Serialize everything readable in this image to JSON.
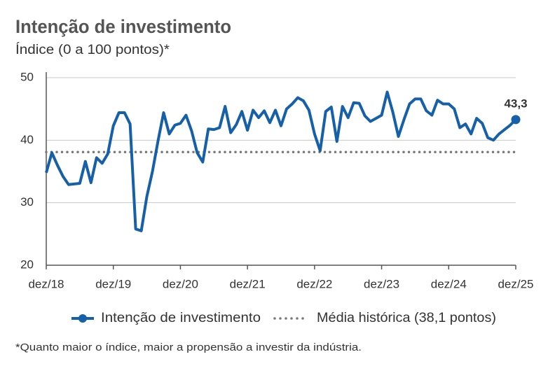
{
  "chart_data": {
    "type": "line",
    "title": "Intenção de investimento",
    "subtitle": "Índice (0 a 100 pontos)*",
    "footnote": "*Quanto maior o índice, maior a propensão a investir da indústria.",
    "categories": [
      "dez/18",
      null,
      null,
      null,
      null,
      null,
      null,
      null,
      null,
      null,
      null,
      null,
      "dez/19",
      null,
      null,
      null,
      null,
      null,
      null,
      null,
      null,
      null,
      null,
      null,
      "dez/20",
      null,
      null,
      null,
      null,
      null,
      null,
      null,
      null,
      null,
      null,
      null,
      "dez/21",
      null,
      null,
      null,
      null,
      null,
      null,
      null,
      null,
      null,
      null,
      null,
      "dez/22",
      null,
      null,
      null,
      null,
      null,
      null,
      null,
      null,
      null,
      null,
      null,
      "dez/23",
      null,
      null,
      null,
      null,
      null,
      null,
      null,
      null,
      null,
      null,
      null,
      "dez/24",
      null,
      null,
      null,
      null,
      null,
      null,
      null,
      null,
      null,
      null,
      null,
      "dez/25"
    ],
    "series": [
      {
        "name": "Intenção de investimento",
        "color": "#1560a8",
        "values": [
          34.8,
          38.0,
          36.0,
          34.2,
          32.9,
          33.0,
          33.1,
          36.6,
          33.2,
          37.2,
          36.3,
          37.8,
          42.3,
          44.4,
          44.4,
          42.6,
          25.8,
          25.5,
          31.0,
          35.0,
          39.9,
          44.4,
          41.0,
          42.4,
          42.7,
          44.0,
          41.5,
          38.0,
          36.5,
          41.8,
          41.7,
          42.0,
          45.4,
          41.2,
          42.5,
          44.6,
          41.6,
          44.8,
          43.6,
          44.7,
          42.8,
          44.8,
          42.3,
          45.0,
          45.8,
          46.8,
          46.3,
          44.8,
          41.0,
          38.3,
          44.6,
          45.3,
          39.8,
          45.4,
          43.6,
          46.0,
          45.9,
          43.9,
          43.0,
          43.5,
          44.0,
          47.7,
          44.5,
          40.6,
          43.3,
          45.8,
          46.6,
          46.6,
          44.7,
          44.0,
          46.4,
          45.8,
          45.8,
          45.0,
          42.0,
          42.6,
          41.0,
          43.5,
          42.7,
          40.4,
          40.0,
          41.0,
          41.7,
          42.4,
          43.3
        ],
        "value_labels": [
          null,
          null,
          null,
          null,
          null,
          null,
          null,
          null,
          null,
          null,
          null,
          null,
          null,
          null,
          null,
          null,
          null,
          null,
          null,
          null,
          null,
          null,
          null,
          null,
          null,
          null,
          null,
          null,
          null,
          null,
          null,
          null,
          null,
          null,
          null,
          null,
          null,
          null,
          null,
          null,
          null,
          null,
          null,
          null,
          null,
          null,
          null,
          null,
          null,
          null,
          null,
          null,
          null,
          null,
          null,
          null,
          null,
          null,
          null,
          null,
          null,
          null,
          null,
          null,
          null,
          null,
          null,
          null,
          null,
          null,
          null,
          null,
          null,
          null,
          null,
          null,
          null,
          null,
          null,
          null,
          null,
          null,
          null,
          null,
          "43,3"
        ]
      }
    ],
    "reference_line": {
      "name": "Média histórica (38,1 pontos)",
      "value": 38.1,
      "color": "#777777"
    },
    "ylim": [
      20,
      50
    ],
    "yticks": [
      20,
      30,
      40,
      50
    ],
    "grid": true
  }
}
